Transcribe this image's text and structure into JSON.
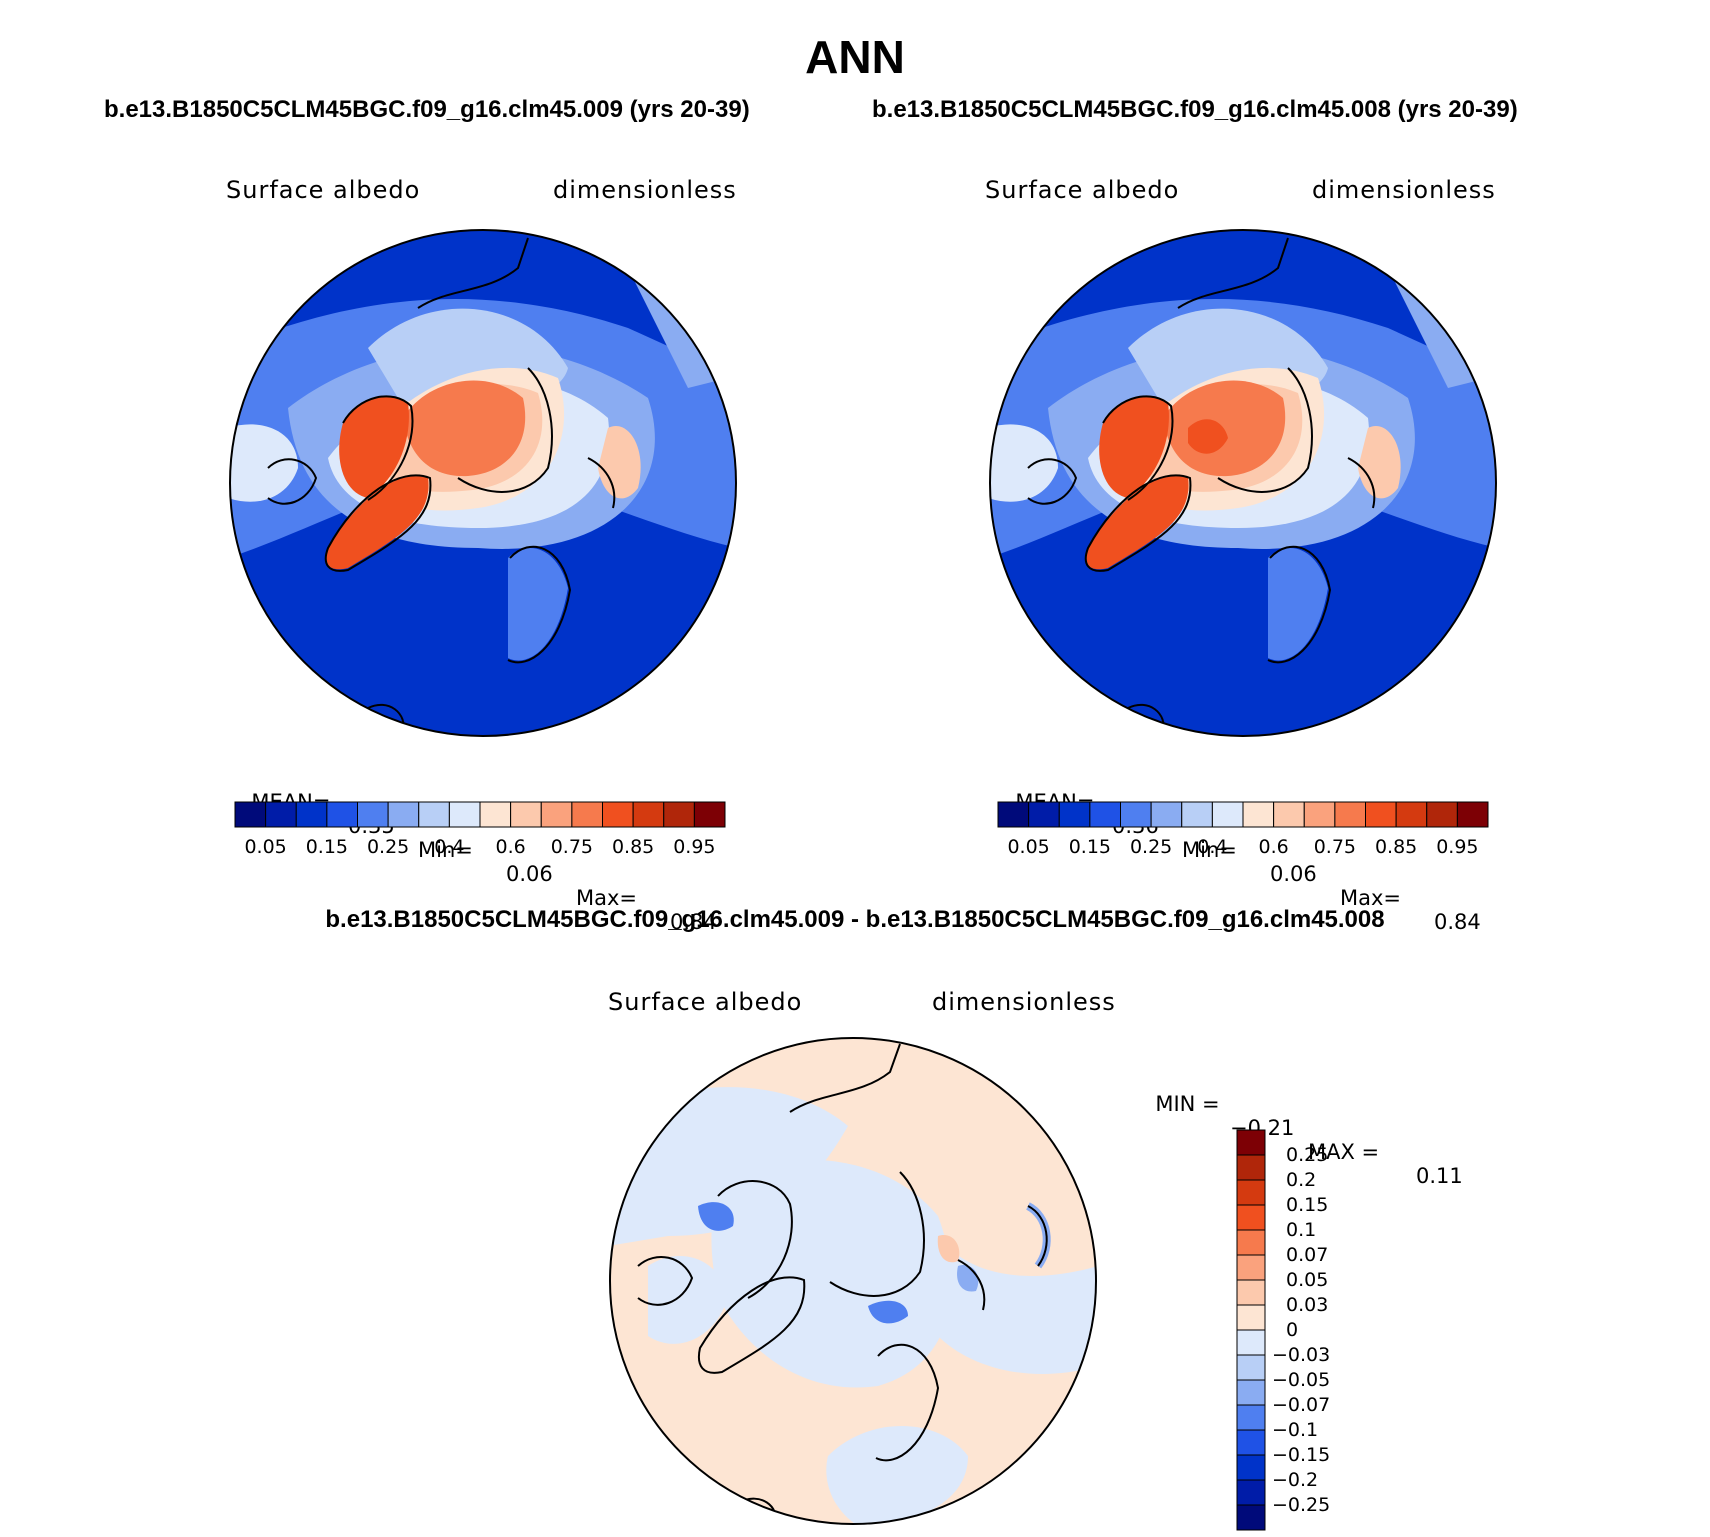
{
  "title": "ANN",
  "left_case_title": "b.e13.B1850C5CLM45BGC.f09_g16.clm45.009 (yrs 20-39)",
  "right_case_title": "b.e13.B1850C5CLM45BGC.f09_g16.clm45.008 (yrs 20-39)",
  "diff_title": "b.e13.B1850C5CLM45BGC.f09_g16.clm45.009 - b.e13.B1850C5CLM45BGC.f09_g16.clm45.008",
  "panels": [
    {
      "variable": "Surface albedo",
      "units": "dimensionless",
      "stats": {
        "mean_label": "MEAN=",
        "mean": "0.35",
        "min_label": "Min=",
        "min": "0.06",
        "max_label": "Max=",
        "max": "0.84"
      }
    },
    {
      "variable": "Surface albedo",
      "units": "dimensionless",
      "stats": {
        "mean_label": "MEAN=",
        "mean": "0.36",
        "min_label": "Min=",
        "min": "0.06",
        "max_label": "Max=",
        "max": "0.84"
      }
    }
  ],
  "diff_panel": {
    "variable": "Surface albedo",
    "units": "dimensionless",
    "minmax": {
      "min_label": "MIN =",
      "min": "−0.21",
      "max_label": "MAX =",
      "max": "0.11"
    }
  },
  "colorbar_abs": {
    "colors": [
      "#000a7a",
      "#001ca8",
      "#0033c9",
      "#1f52e6",
      "#4f7ff0",
      "#8aacf2",
      "#b8cff6",
      "#dde9fb",
      "#fde5d3",
      "#fcc9ad",
      "#faa27d",
      "#f67a4d",
      "#f0501f",
      "#d43a10",
      "#b0260a",
      "#7d0005"
    ],
    "tick_labels": [
      "0.05",
      "0.15",
      "0.25",
      "0.4",
      "0.6",
      "0.75",
      "0.85",
      "0.95"
    ]
  },
  "colorbar_diff": {
    "colors": [
      "#7d0005",
      "#b0260a",
      "#d43a10",
      "#f0501f",
      "#f67a4d",
      "#faa27d",
      "#fcc9ad",
      "#fde5d3",
      "#dde9fb",
      "#b8cff6",
      "#8aacf2",
      "#4f7ff0",
      "#1f52e6",
      "#0033c9",
      "#001ca8",
      "#000a7a"
    ],
    "tick_labels": [
      "0.25",
      "0.2",
      "0.15",
      "0.1",
      "0.07",
      "0.05",
      "0.03",
      "0",
      "−0.03",
      "−0.05",
      "−0.07",
      "−0.1",
      "−0.15",
      "−0.2",
      "−0.25"
    ]
  }
}
